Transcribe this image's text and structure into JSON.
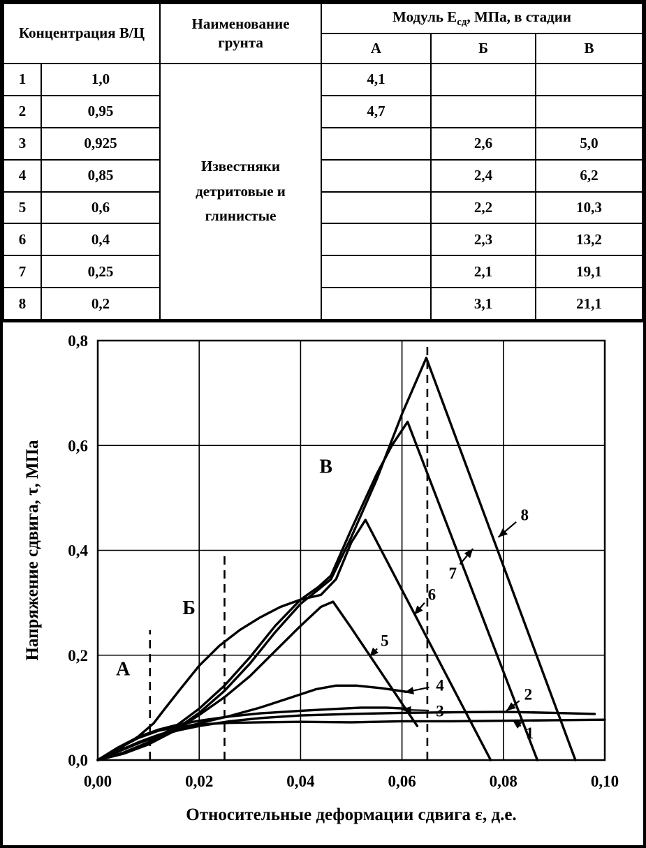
{
  "table": {
    "headers": {
      "concentration": "Концентрация В/Ц",
      "soil_line1": "Наименование",
      "soil_line2": "грунта",
      "modulus_pre": "Модуль Е",
      "modulus_sub": "сд",
      "modulus_post": ", МПа, в стадии",
      "stage_a": "А",
      "stage_b": "Б",
      "stage_v": "В"
    },
    "soil_name": "Известняки детритовые и глинистые",
    "rows": [
      {
        "num": "1",
        "wc": "1,0",
        "a": "4,1",
        "b": "",
        "v": ""
      },
      {
        "num": "2",
        "wc": "0,95",
        "a": "4,7",
        "b": "",
        "v": ""
      },
      {
        "num": "3",
        "wc": "0,925",
        "a": "",
        "b": "2,6",
        "v": "5,0"
      },
      {
        "num": "4",
        "wc": "0,85",
        "a": "",
        "b": "2,4",
        "v": "6,2"
      },
      {
        "num": "5",
        "wc": "0,6",
        "a": "",
        "b": "2,2",
        "v": "10,3"
      },
      {
        "num": "6",
        "wc": "0,4",
        "a": "",
        "b": "2,3",
        "v": "13,2"
      },
      {
        "num": "7",
        "wc": "0,25",
        "a": "",
        "b": "2,1",
        "v": "19,1"
      },
      {
        "num": "8",
        "wc": "0,2",
        "a": "",
        "b": "3,1",
        "v": "21,1"
      }
    ]
  },
  "chart_data": {
    "type": "line",
    "title": "",
    "xlabel": "Относительные деформации сдвига ε, д.е.",
    "ylabel": "Напряжение сдвига, τ, МПа",
    "xlim": [
      0,
      0.1
    ],
    "ylim": [
      0,
      0.8
    ],
    "grid": true,
    "x_ticks": {
      "values": [
        0,
        0.02,
        0.04,
        0.06,
        0.08,
        0.1
      ],
      "labels": [
        "0,00",
        "0,02",
        "0,04",
        "0,06",
        "0,08",
        "0,10"
      ]
    },
    "y_ticks": {
      "values": [
        0,
        0.2,
        0.4,
        0.6,
        0.8
      ],
      "labels": [
        "0,0",
        "0,2",
        "0,4",
        "0,6",
        "0,8"
      ]
    },
    "stage_boundaries": [
      {
        "x": 0.0103,
        "y_top": 0.248
      },
      {
        "x": 0.025,
        "y_top": 0.4
      },
      {
        "x": 0.065,
        "y_top": 0.8
      }
    ],
    "zone_labels": [
      {
        "text": "А",
        "x": 0.005,
        "y": 0.162
      },
      {
        "text": "Б",
        "x": 0.018,
        "y": 0.278
      },
      {
        "text": "В",
        "x": 0.045,
        "y": 0.548
      }
    ],
    "series": [
      {
        "name": "1",
        "points": [
          [
            0,
            0
          ],
          [
            0.004,
            0.022
          ],
          [
            0.008,
            0.042
          ],
          [
            0.012,
            0.056
          ],
          [
            0.016,
            0.064
          ],
          [
            0.02,
            0.068
          ],
          [
            0.026,
            0.071
          ],
          [
            0.032,
            0.072
          ],
          [
            0.04,
            0.073
          ],
          [
            0.05,
            0.072
          ],
          [
            0.06,
            0.074
          ],
          [
            0.07,
            0.074
          ],
          [
            0.08,
            0.075
          ],
          [
            0.09,
            0.076
          ],
          [
            0.1,
            0.077
          ]
        ]
      },
      {
        "name": "2",
        "points": [
          [
            0,
            0
          ],
          [
            0.004,
            0.016
          ],
          [
            0.008,
            0.032
          ],
          [
            0.012,
            0.046
          ],
          [
            0.016,
            0.057
          ],
          [
            0.02,
            0.065
          ],
          [
            0.026,
            0.074
          ],
          [
            0.032,
            0.08
          ],
          [
            0.04,
            0.085
          ],
          [
            0.05,
            0.088
          ],
          [
            0.06,
            0.09
          ],
          [
            0.07,
            0.091
          ],
          [
            0.08,
            0.092
          ],
          [
            0.09,
            0.09
          ],
          [
            0.098,
            0.088
          ]
        ]
      },
      {
        "name": "3",
        "points": [
          [
            0,
            0
          ],
          [
            0.004,
            0.024
          ],
          [
            0.008,
            0.044
          ],
          [
            0.012,
            0.058
          ],
          [
            0.016,
            0.068
          ],
          [
            0.02,
            0.075
          ],
          [
            0.026,
            0.083
          ],
          [
            0.032,
            0.089
          ],
          [
            0.04,
            0.094
          ],
          [
            0.046,
            0.097
          ],
          [
            0.052,
            0.1
          ],
          [
            0.057,
            0.1
          ],
          [
            0.061,
            0.098
          ]
        ]
      },
      {
        "name": "4",
        "points": [
          [
            0,
            0
          ],
          [
            0.004,
            0.017
          ],
          [
            0.008,
            0.034
          ],
          [
            0.012,
            0.048
          ],
          [
            0.016,
            0.06
          ],
          [
            0.02,
            0.07
          ],
          [
            0.026,
            0.084
          ],
          [
            0.032,
            0.1
          ],
          [
            0.038,
            0.119
          ],
          [
            0.043,
            0.135
          ],
          [
            0.047,
            0.142
          ],
          [
            0.051,
            0.142
          ],
          [
            0.056,
            0.137
          ],
          [
            0.061,
            0.13
          ]
        ]
      },
      {
        "name": "5",
        "points": [
          [
            0,
            0
          ],
          [
            0.005,
            0.012
          ],
          [
            0.01,
            0.03
          ],
          [
            0.015,
            0.055
          ],
          [
            0.02,
            0.086
          ],
          [
            0.025,
            0.12
          ],
          [
            0.03,
            0.16
          ],
          [
            0.035,
            0.208
          ],
          [
            0.04,
            0.256
          ],
          [
            0.044,
            0.292
          ],
          [
            0.0464,
            0.302
          ],
          [
            0.05,
            0.252
          ],
          [
            0.055,
            0.18
          ],
          [
            0.06,
            0.108
          ],
          [
            0.063,
            0.065
          ]
        ]
      },
      {
        "name": "6",
        "points": [
          [
            0,
            0
          ],
          [
            0.004,
            0.02
          ],
          [
            0.008,
            0.045
          ],
          [
            0.011,
            0.07
          ],
          [
            0.013,
            0.095
          ],
          [
            0.016,
            0.132
          ],
          [
            0.02,
            0.18
          ],
          [
            0.024,
            0.218
          ],
          [
            0.028,
            0.248
          ],
          [
            0.032,
            0.272
          ],
          [
            0.036,
            0.292
          ],
          [
            0.04,
            0.306
          ],
          [
            0.044,
            0.315
          ],
          [
            0.047,
            0.345
          ],
          [
            0.05,
            0.415
          ],
          [
            0.0528,
            0.458
          ],
          [
            0.0775,
            0
          ]
        ]
      },
      {
        "name": "7",
        "points": [
          [
            0,
            0
          ],
          [
            0.005,
            0.014
          ],
          [
            0.01,
            0.034
          ],
          [
            0.015,
            0.062
          ],
          [
            0.02,
            0.098
          ],
          [
            0.025,
            0.142
          ],
          [
            0.03,
            0.196
          ],
          [
            0.035,
            0.256
          ],
          [
            0.04,
            0.306
          ],
          [
            0.0435,
            0.33
          ],
          [
            0.046,
            0.352
          ],
          [
            0.05,
            0.44
          ],
          [
            0.055,
            0.545
          ],
          [
            0.058,
            0.6
          ],
          [
            0.0611,
            0.645
          ],
          [
            0.0867,
            0
          ]
        ]
      },
      {
        "name": "8",
        "points": [
          [
            0,
            0
          ],
          [
            0.005,
            0.012
          ],
          [
            0.01,
            0.03
          ],
          [
            0.015,
            0.056
          ],
          [
            0.02,
            0.09
          ],
          [
            0.025,
            0.132
          ],
          [
            0.03,
            0.184
          ],
          [
            0.035,
            0.244
          ],
          [
            0.04,
            0.298
          ],
          [
            0.0435,
            0.325
          ],
          [
            0.046,
            0.345
          ],
          [
            0.05,
            0.425
          ],
          [
            0.055,
            0.535
          ],
          [
            0.06,
            0.66
          ],
          [
            0.0648,
            0.767
          ],
          [
            0.0942,
            0
          ]
        ]
      }
    ],
    "annotations": [
      {
        "text": "1",
        "label_x": 0.0852,
        "label_y": 0.052,
        "tip_x": 0.0818,
        "tip_y": 0.076
      },
      {
        "text": "2",
        "label_x": 0.0849,
        "label_y": 0.126,
        "tip_x": 0.0806,
        "tip_y": 0.094
      },
      {
        "text": "3",
        "label_x": 0.0675,
        "label_y": 0.094,
        "tip_x": 0.06,
        "tip_y": 0.096
      },
      {
        "text": "4",
        "label_x": 0.0675,
        "label_y": 0.143,
        "tip_x": 0.0605,
        "tip_y": 0.129
      },
      {
        "text": "5",
        "label_x": 0.0566,
        "label_y": 0.228,
        "tip_x": 0.0536,
        "tip_y": 0.197
      },
      {
        "text": "6",
        "label_x": 0.0659,
        "label_y": 0.316,
        "tip_x": 0.0624,
        "tip_y": 0.277
      },
      {
        "text": "7",
        "label_x": 0.07,
        "label_y": 0.357,
        "tip_x": 0.074,
        "tip_y": 0.403
      },
      {
        "text": "8",
        "label_x": 0.0842,
        "label_y": 0.468,
        "tip_x": 0.079,
        "tip_y": 0.425
      }
    ]
  }
}
